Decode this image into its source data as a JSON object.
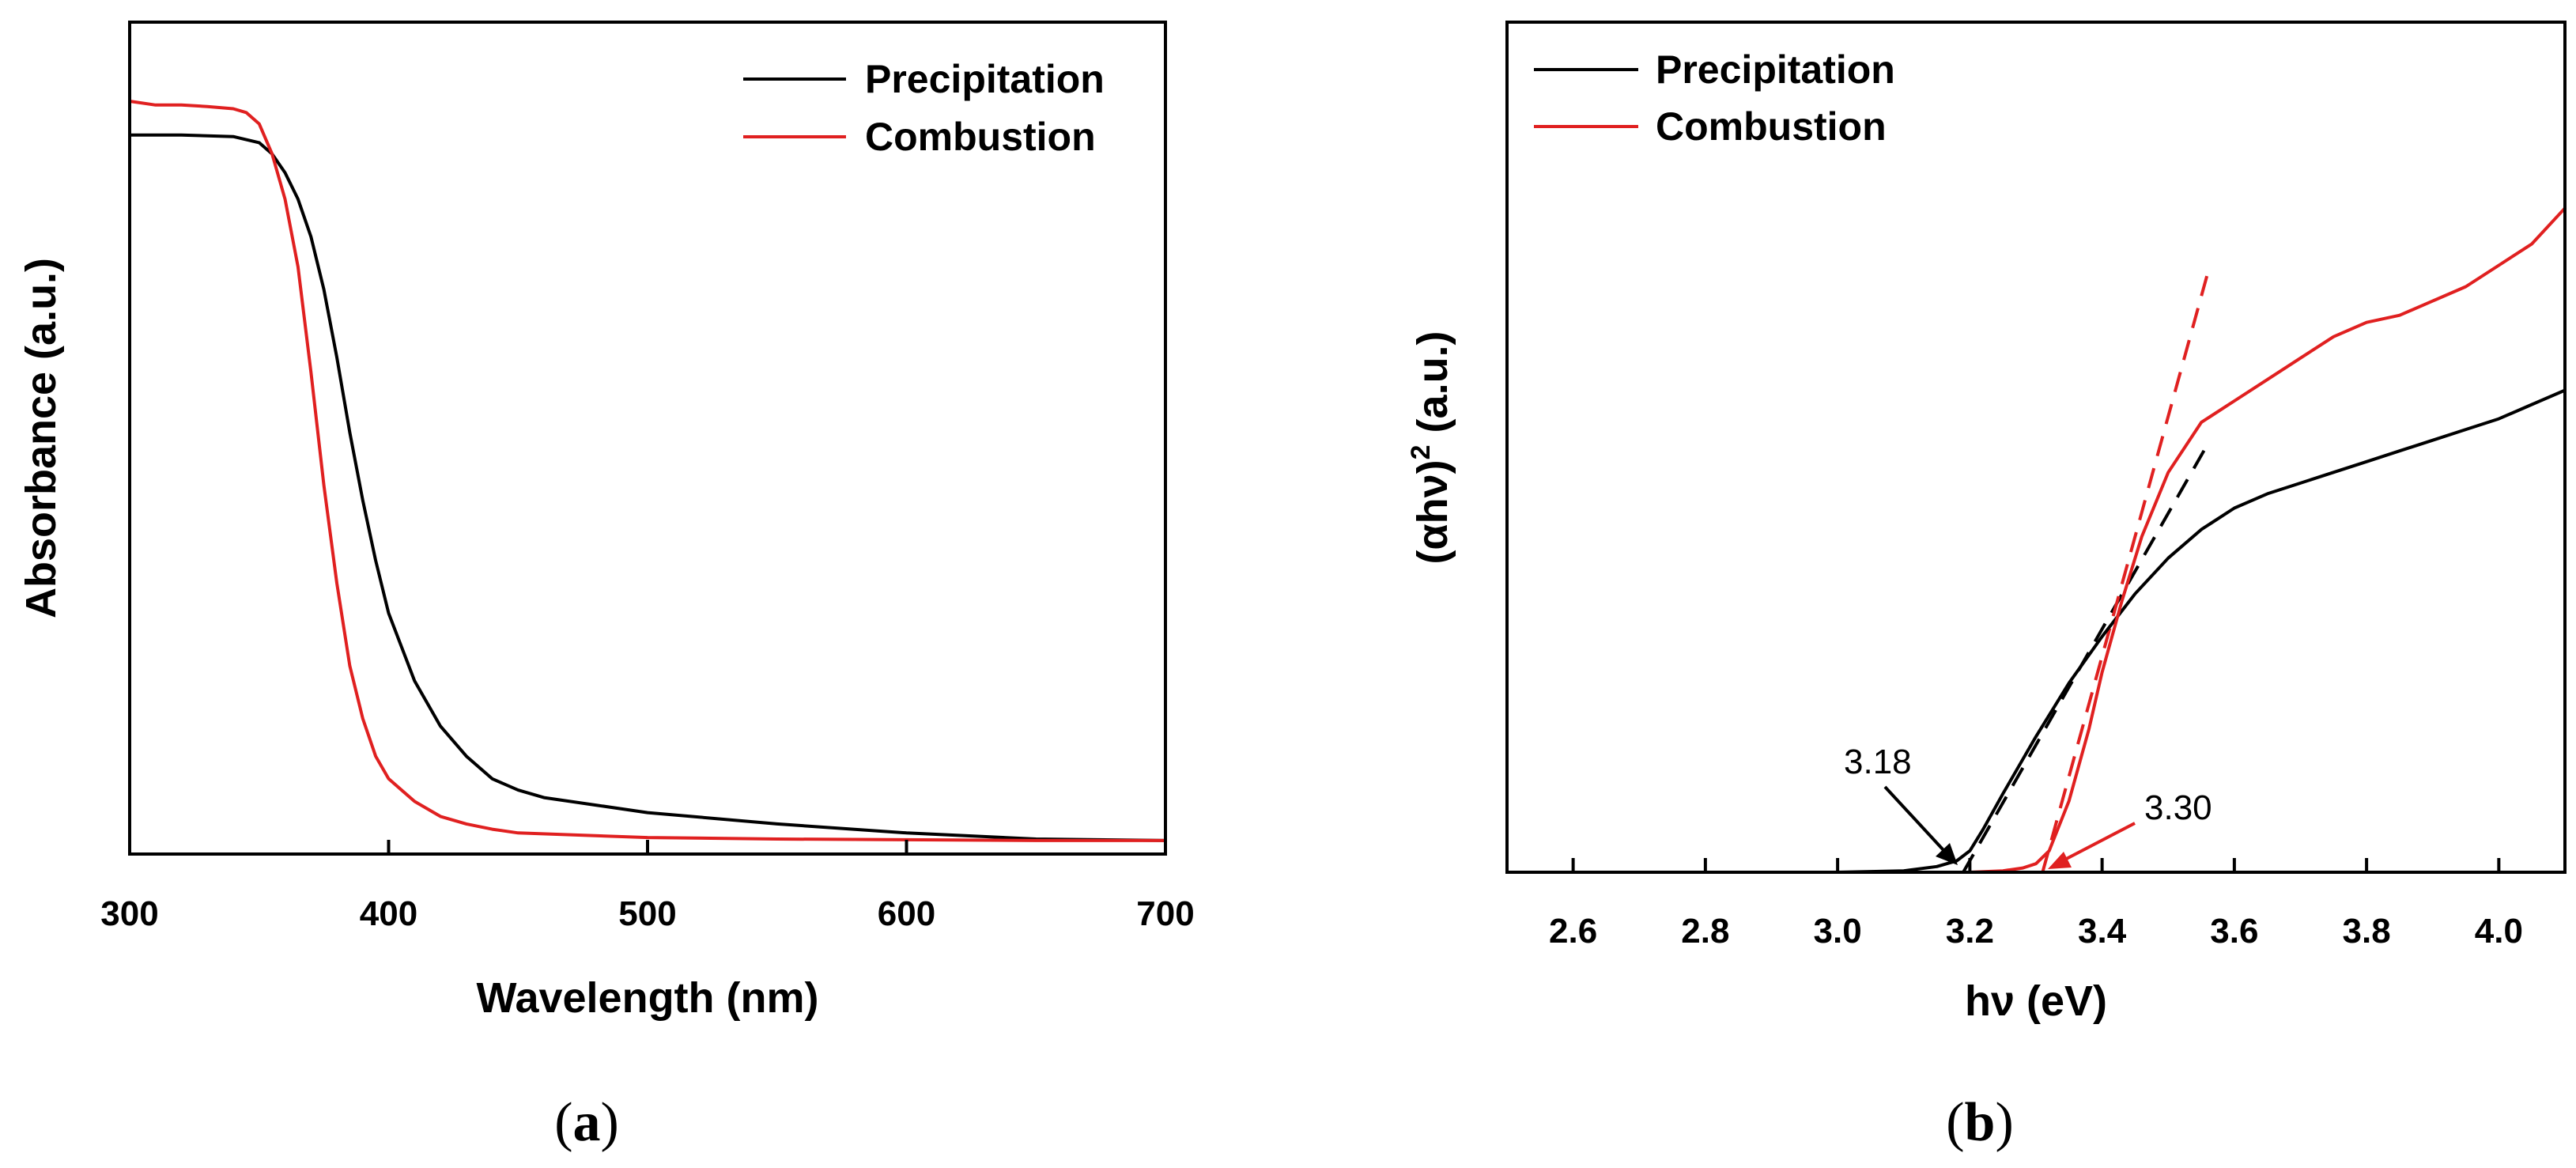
{
  "chart_data": [
    {
      "type": "line",
      "panel_label": "a",
      "xlabel": "Wavelength (nm)",
      "ylabel": "Absorbance (a.u.)",
      "xlim": [
        300,
        700
      ],
      "ylim": [
        0,
        1
      ],
      "xticks": [
        300,
        400,
        500,
        600,
        700
      ],
      "yticks_shown": false,
      "legend": "top-right",
      "series": [
        {
          "name": "Precipitation",
          "color": "#000000",
          "x": [
            300,
            320,
            340,
            350,
            355,
            360,
            365,
            370,
            375,
            380,
            385,
            390,
            395,
            400,
            410,
            420,
            430,
            440,
            450,
            460,
            480,
            500,
            550,
            600,
            650,
            700
          ],
          "y": [
            0.955,
            0.955,
            0.953,
            0.945,
            0.93,
            0.905,
            0.87,
            0.82,
            0.75,
            0.66,
            0.56,
            0.47,
            0.39,
            0.32,
            0.23,
            0.17,
            0.13,
            0.1,
            0.085,
            0.075,
            0.065,
            0.055,
            0.04,
            0.028,
            0.02,
            0.018
          ]
        },
        {
          "name": "Combustion",
          "color": "#e02020",
          "x": [
            300,
            310,
            320,
            330,
            340,
            345,
            350,
            355,
            360,
            365,
            370,
            375,
            380,
            385,
            390,
            395,
            400,
            410,
            420,
            430,
            440,
            450,
            500,
            550,
            600,
            650,
            700
          ],
          "y": [
            1.0,
            0.995,
            0.995,
            0.993,
            0.99,
            0.985,
            0.97,
            0.93,
            0.87,
            0.78,
            0.64,
            0.49,
            0.36,
            0.25,
            0.18,
            0.13,
            0.1,
            0.07,
            0.05,
            0.04,
            0.033,
            0.028,
            0.022,
            0.02,
            0.019,
            0.018,
            0.018
          ]
        }
      ]
    },
    {
      "type": "line",
      "panel_label": "b",
      "xlabel": "hν (eV)",
      "ylabel_prefix": "(αhν)",
      "ylabel_exponent": "2",
      "ylabel_suffix": " (a.u.)",
      "xlim": [
        2.5,
        4.1
      ],
      "ylim": [
        0,
        1
      ],
      "xticks": [
        2.6,
        2.8,
        3.0,
        3.2,
        3.4,
        3.6,
        3.8,
        4.0
      ],
      "xtick_labels": [
        "2.6",
        "2.8",
        "3.0",
        "3.2",
        "3.4",
        "3.6",
        "3.8",
        "4.0"
      ],
      "yticks_shown": false,
      "legend": "top-left",
      "series": [
        {
          "name": "Precipitation",
          "color": "#000000",
          "x": [
            2.5,
            2.8,
            3.0,
            3.1,
            3.15,
            3.18,
            3.2,
            3.22,
            3.25,
            3.3,
            3.35,
            3.4,
            3.45,
            3.5,
            3.55,
            3.6,
            3.65,
            3.7,
            3.75,
            3.8,
            3.85,
            3.9,
            3.95,
            4.0,
            4.05,
            4.1
          ],
          "y": [
            0.0,
            0.0,
            0.0,
            0.002,
            0.008,
            0.016,
            0.03,
            0.06,
            0.11,
            0.19,
            0.265,
            0.33,
            0.39,
            0.44,
            0.48,
            0.51,
            0.53,
            0.545,
            0.56,
            0.575,
            0.59,
            0.605,
            0.62,
            0.635,
            0.655,
            0.675
          ]
        },
        {
          "name": "Combustion",
          "color": "#e02020",
          "x": [
            2.5,
            3.0,
            3.2,
            3.25,
            3.28,
            3.3,
            3.32,
            3.35,
            3.38,
            3.4,
            3.43,
            3.46,
            3.5,
            3.55,
            3.6,
            3.65,
            3.7,
            3.75,
            3.8,
            3.85,
            3.9,
            3.95,
            4.0,
            4.05,
            4.1
          ],
          "y": [
            0.0,
            0.0,
            0.0,
            0.002,
            0.006,
            0.012,
            0.03,
            0.1,
            0.2,
            0.28,
            0.38,
            0.47,
            0.56,
            0.63,
            0.66,
            0.69,
            0.72,
            0.75,
            0.77,
            0.78,
            0.8,
            0.82,
            0.85,
            0.88,
            0.93
          ]
        }
      ],
      "fit_lines": [
        {
          "color": "#000000",
          "x": [
            3.19,
            3.56
          ],
          "y": [
            0.0,
            0.6
          ]
        },
        {
          "color": "#e02020",
          "x": [
            3.31,
            3.56
          ],
          "y": [
            0.0,
            0.84
          ]
        }
      ],
      "annotations": [
        {
          "text": "3.18",
          "color": "#000000",
          "target_x": 3.18,
          "target_y": 0.0
        },
        {
          "text": "3.30",
          "color": "#e02020",
          "target_x": 3.31,
          "target_y": 0.0
        }
      ]
    }
  ]
}
